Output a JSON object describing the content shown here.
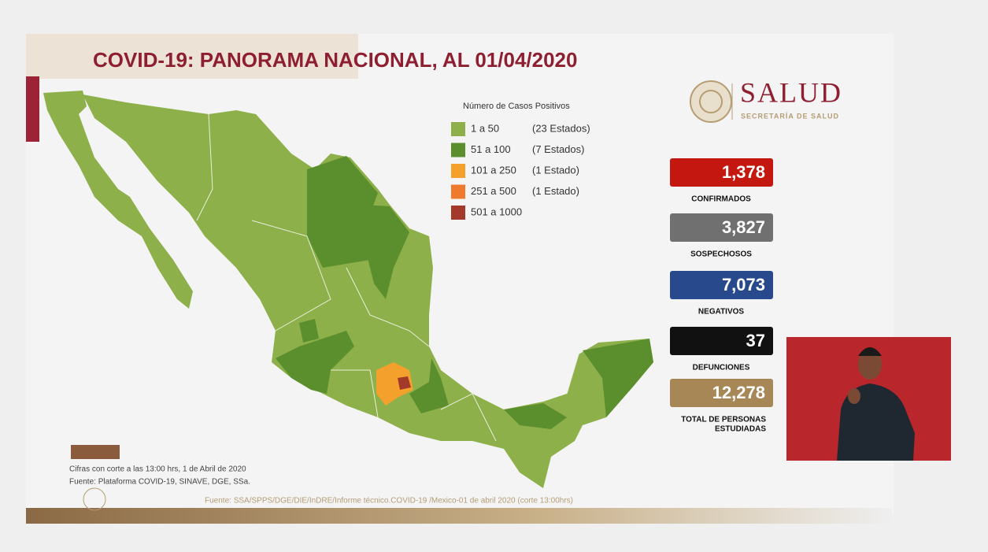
{
  "header": {
    "title": "COVID-19: PANORAMA NACIONAL, AL 01/04/2020"
  },
  "logo": {
    "name": "SALUD",
    "subtitle": "SECRETARÍA DE SALUD"
  },
  "legend": {
    "title": "Número de Casos Positivos",
    "items": [
      {
        "range": "1 a 50",
        "count": "(23 Estados)",
        "color": "#8db04a"
      },
      {
        "range": "51 a 100",
        "count": "(7 Estados)",
        "color": "#5b8f2e"
      },
      {
        "range": "101 a 250",
        "count": "(1 Estado)",
        "color": "#f3a12c"
      },
      {
        "range": "251 a 500",
        "count": "(1 Estado)",
        "color": "#ef7a2d"
      },
      {
        "range": "501 a 1000",
        "count": null,
        "color": "#a2392a"
      }
    ]
  },
  "stats": [
    {
      "value": "1,378",
      "label": [
        "CONFIRMADOS"
      ],
      "color": "#c4170f"
    },
    {
      "value": "3,827",
      "label": [
        "SOSPECHOSOS"
      ],
      "color": "#707070"
    },
    {
      "value": "7,073",
      "label": [
        "NEGATIVOS"
      ],
      "color": "#284a8d"
    },
    {
      "value": "37",
      "label": [
        "DEFUNCIONES"
      ],
      "color": "#111111"
    },
    {
      "value": "12,278",
      "label": [
        "TOTAL DE PERSONAS",
        "ESTUDIADAS"
      ],
      "color": "#a78756"
    }
  ],
  "notes": [
    "Cifras con corte a las 13:00 hrs, 1 de Abril de 2020",
    "Fuente: Plataforma COVID-19, SINAVE, DGE, SSa."
  ],
  "source": "Fuente: SSA/SPPS/DGE/DIE/InDRE/Informe técnico.COVID-19 /Mexico-01 de abril 2020 (corte 13:00hrs)"
}
